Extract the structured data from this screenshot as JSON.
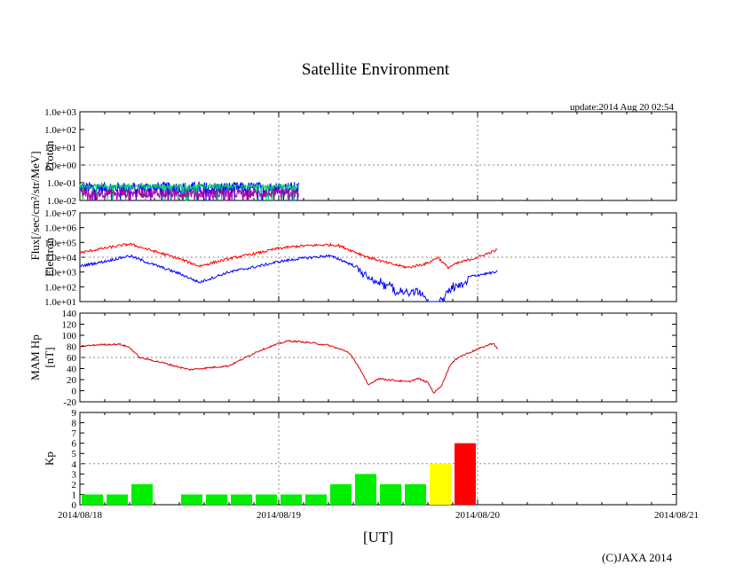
{
  "title": "Satellite Environment",
  "update_text": "update:2014 Aug 20 02:54",
  "copyright": "(C)JAXA 2014",
  "chart_data": [
    {
      "type": "line",
      "name": "proton",
      "ylabel": "Proton",
      "shared_ylabel": "Flux[/sec/cm²/str/MeV]",
      "yscale": "log",
      "ylim_exp": [
        -2,
        3
      ],
      "y_tick_labels": [
        "1.0e-02",
        "1.0e-01",
        "1.0e+00",
        "1.0e+01",
        "1.0e+02",
        "1.0e+03"
      ],
      "x_end_days": 1.1,
      "series": [
        {
          "name": "proton-blue",
          "color": "#0000ff",
          "level_exp": -1.3,
          "noise": 0.35
        },
        {
          "name": "proton-green",
          "color": "#00cc66",
          "level_exp": -1.2,
          "noise": 0.12
        },
        {
          "name": "proton-purple",
          "color": "#aa00aa",
          "level_exp": -1.6,
          "noise": 0.25
        }
      ]
    },
    {
      "type": "line",
      "name": "electron",
      "ylabel": "Electron",
      "yscale": "log",
      "ylim_exp": [
        1,
        7
      ],
      "y_tick_labels": [
        "1.0e+01",
        "1.0e+02",
        "1.0e+03",
        "1.0e+04",
        "1.0e+05",
        "1.0e+06",
        "1.0e+07"
      ],
      "series": [
        {
          "name": "electron-red",
          "color": "#ff0000",
          "x": [
            0,
            0.12,
            0.25,
            0.35,
            0.5,
            0.6,
            0.75,
            0.9,
            1.0,
            1.1,
            1.25,
            1.3,
            1.45,
            1.55,
            1.65,
            1.75,
            1.8,
            1.85,
            1.9,
            2.0,
            2.1
          ],
          "y_exp": [
            4.3,
            4.6,
            4.9,
            4.5,
            3.9,
            3.4,
            3.9,
            4.3,
            4.6,
            4.75,
            4.85,
            4.8,
            4.0,
            3.6,
            3.3,
            3.6,
            4.0,
            3.3,
            3.6,
            4.0,
            4.5
          ]
        },
        {
          "name": "electron-blue",
          "color": "#0000ff",
          "x": [
            0,
            0.12,
            0.25,
            0.35,
            0.5,
            0.6,
            0.75,
            0.9,
            1.0,
            1.1,
            1.25,
            1.3,
            1.45,
            1.55,
            1.65,
            1.72,
            1.75,
            1.8,
            1.85,
            1.9,
            2.0,
            2.1
          ],
          "y_exp": [
            3.4,
            3.7,
            4.1,
            3.6,
            2.9,
            2.3,
            3.0,
            3.4,
            3.7,
            3.9,
            4.1,
            3.9,
            3.0,
            2.3,
            1.8,
            2.0,
            1.0,
            1.0,
            2.0,
            2.5,
            2.8,
            3.0
          ]
        }
      ]
    },
    {
      "type": "line",
      "name": "mam-hp",
      "ylabel": "MAM Hp",
      "ylabel2": "[nT]",
      "ylim": [
        -20,
        140
      ],
      "y_tick_labels": [
        "-20",
        "0",
        "20",
        "40",
        "60",
        "80",
        "100",
        "120",
        "140"
      ],
      "series": [
        {
          "name": "hp",
          "color": "#dd0000",
          "x": [
            0,
            0.1,
            0.2,
            0.25,
            0.3,
            0.4,
            0.55,
            0.75,
            0.9,
            1.0,
            1.05,
            1.15,
            1.25,
            1.35,
            1.4,
            1.45,
            1.5,
            1.55,
            1.6,
            1.65,
            1.7,
            1.75,
            1.78,
            1.82,
            1.86,
            1.9,
            2.0,
            2.08,
            2.1
          ],
          "y": [
            80,
            83,
            84,
            78,
            60,
            52,
            38,
            45,
            72,
            85,
            90,
            87,
            82,
            70,
            45,
            10,
            22,
            20,
            18,
            16,
            22,
            15,
            -4,
            10,
            45,
            60,
            75,
            86,
            75
          ]
        }
      ]
    },
    {
      "type": "bar",
      "name": "kp",
      "ylabel": "Kp",
      "ylim": [
        0,
        9
      ],
      "y_tick_labels": [
        "0",
        "1",
        "2",
        "3",
        "4",
        "5",
        "6",
        "7",
        "8",
        "9"
      ],
      "bar_width_hours": 3,
      "bars": [
        {
          "start_hour": 0,
          "value": 1,
          "color": "#00ee00"
        },
        {
          "start_hour": 3,
          "value": 1,
          "color": "#00ee00"
        },
        {
          "start_hour": 6,
          "value": 2,
          "color": "#00ee00"
        },
        {
          "start_hour": 12,
          "value": 1,
          "color": "#00ee00"
        },
        {
          "start_hour": 15,
          "value": 1,
          "color": "#00ee00"
        },
        {
          "start_hour": 18,
          "value": 1,
          "color": "#00ee00"
        },
        {
          "start_hour": 21,
          "value": 1,
          "color": "#00ee00"
        },
        {
          "start_hour": 24,
          "value": 1,
          "color": "#00ee00"
        },
        {
          "start_hour": 27,
          "value": 1,
          "color": "#00ee00"
        },
        {
          "start_hour": 30,
          "value": 2,
          "color": "#00ee00"
        },
        {
          "start_hour": 33,
          "value": 3,
          "color": "#00ee00"
        },
        {
          "start_hour": 36,
          "value": 2,
          "color": "#00ee00"
        },
        {
          "start_hour": 39,
          "value": 2,
          "color": "#00ee00"
        },
        {
          "start_hour": 42,
          "value": 4,
          "color": "#ffff00"
        },
        {
          "start_hour": 45,
          "value": 6,
          "color": "#ff0000"
        }
      ]
    }
  ],
  "x_axis": {
    "label": "[UT]",
    "range_days": [
      0,
      3
    ],
    "tick_labels": [
      "2014/08/18",
      "2014/08/19",
      "2014/08/20",
      "2014/08/21"
    ]
  }
}
